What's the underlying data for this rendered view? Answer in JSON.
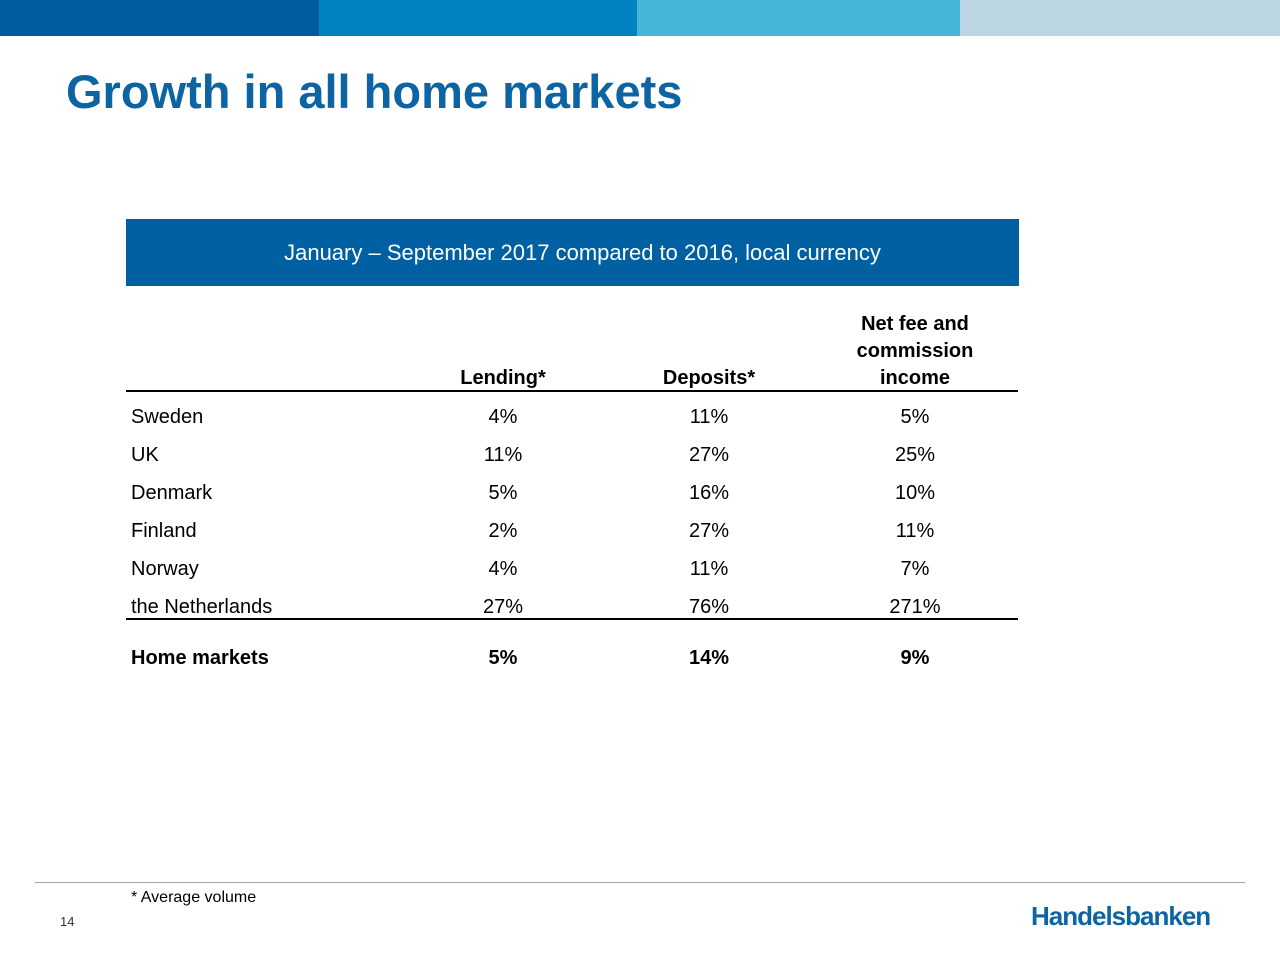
{
  "title": "Growth in all home markets",
  "subtitle": "January – September 2017 compared to 2016, local currency",
  "table": {
    "headers": {
      "lending": "Lending*",
      "deposits": "Deposits*",
      "fee_line1": "Net fee and",
      "fee_line2": "commission",
      "fee_line3": "income"
    },
    "rows": [
      {
        "country": "Sweden",
        "lending": "4%",
        "deposits": "11%",
        "fee": "5%"
      },
      {
        "country": "UK",
        "lending": "11%",
        "deposits": "27%",
        "fee": "25%"
      },
      {
        "country": "Denmark",
        "lending": "5%",
        "deposits": "16%",
        "fee": "10%"
      },
      {
        "country": "Finland",
        "lending": "2%",
        "deposits": "27%",
        "fee": "11%"
      },
      {
        "country": "Norway",
        "lending": "4%",
        "deposits": "11%",
        "fee": "7%"
      },
      {
        "country": "the Netherlands",
        "lending": "27%",
        "deposits": "76%",
        "fee": "271%"
      }
    ],
    "total": {
      "country": "Home markets",
      "lending": "5%",
      "deposits": "14%",
      "fee": "9%"
    }
  },
  "footnote": "* Average volume",
  "page_number": "14",
  "logo": "Handelsbanken",
  "colors": {
    "title": "#0c64a2",
    "banner": "#0060a1",
    "band": [
      "#005c9f",
      "#0083c0",
      "#44b6d9",
      "#bcd5e2"
    ]
  }
}
